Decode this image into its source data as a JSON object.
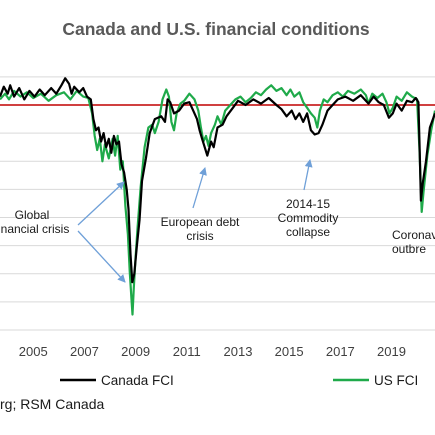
{
  "chart_data": {
    "type": "line",
    "title": "Canada and U.S. financial conditions",
    "xlabel": "",
    "ylabel": "",
    "x_tick_labels": [
      "2005",
      "2007",
      "2009",
      "2011",
      "2013",
      "2015",
      "2017",
      "2019",
      "2"
    ],
    "xlim": [
      2003.7,
      2020.7
    ],
    "ylim": [
      -8,
      1.6
    ],
    "grid": true,
    "reference_line": {
      "y": 0,
      "color": "#c00000"
    },
    "legend_position": "bottom",
    "colors": {
      "canada": "#000000",
      "us": "#1faa4a",
      "reference": "#c00000",
      "arrow": "#6fa0d8",
      "grid": "#d9d9d9"
    },
    "series": [
      {
        "name": "Canada FCI",
        "color": "#000000",
        "points": [
          [
            2003.7,
            0.3
          ],
          [
            2003.85,
            0.65
          ],
          [
            2004.0,
            0.4
          ],
          [
            2004.1,
            0.7
          ],
          [
            2004.25,
            0.3
          ],
          [
            2004.45,
            0.6
          ],
          [
            2004.65,
            0.2
          ],
          [
            2004.85,
            0.5
          ],
          [
            2005.05,
            0.3
          ],
          [
            2005.25,
            0.55
          ],
          [
            2005.45,
            0.35
          ],
          [
            2005.7,
            0.6
          ],
          [
            2005.9,
            0.4
          ],
          [
            2006.1,
            0.7
          ],
          [
            2006.25,
            0.95
          ],
          [
            2006.4,
            0.75
          ],
          [
            2006.5,
            0.4
          ],
          [
            2006.6,
            0.65
          ],
          [
            2006.8,
            0.45
          ],
          [
            2006.95,
            0.6
          ],
          [
            2007.1,
            0.3
          ],
          [
            2007.25,
            0.2
          ],
          [
            2007.35,
            -0.5
          ],
          [
            2007.45,
            -0.9
          ],
          [
            2007.55,
            -0.8
          ],
          [
            2007.65,
            -1.3
          ],
          [
            2007.75,
            -1.0
          ],
          [
            2007.85,
            -1.5
          ],
          [
            2007.95,
            -1.2
          ],
          [
            2008.05,
            -1.7
          ],
          [
            2008.15,
            -1.1
          ],
          [
            2008.25,
            -1.4
          ],
          [
            2008.35,
            -1.3
          ],
          [
            2008.45,
            -2.1
          ],
          [
            2008.55,
            -2.4
          ],
          [
            2008.65,
            -3.0
          ],
          [
            2008.72,
            -3.7
          ],
          [
            2008.8,
            -5.3
          ],
          [
            2008.87,
            -6.3
          ],
          [
            2008.95,
            -6.0
          ],
          [
            2009.05,
            -5.0
          ],
          [
            2009.15,
            -4.1
          ],
          [
            2009.25,
            -2.7
          ],
          [
            2009.4,
            -1.9
          ],
          [
            2009.55,
            -1.0
          ],
          [
            2009.75,
            -0.5
          ],
          [
            2010.0,
            -0.4
          ],
          [
            2010.15,
            -0.6
          ],
          [
            2010.25,
            0.2
          ],
          [
            2010.35,
            0.1
          ],
          [
            2010.5,
            -0.3
          ],
          [
            2010.7,
            -0.2
          ],
          [
            2010.9,
            0.05
          ],
          [
            2011.1,
            0.1
          ],
          [
            2011.25,
            -0.2
          ],
          [
            2011.4,
            -0.5
          ],
          [
            2011.5,
            -0.9
          ],
          [
            2011.6,
            -1.2
          ],
          [
            2011.7,
            -1.5
          ],
          [
            2011.8,
            -1.8
          ],
          [
            2011.95,
            -1.3
          ],
          [
            2012.05,
            -1.5
          ],
          [
            2012.2,
            -0.8
          ],
          [
            2012.4,
            -0.7
          ],
          [
            2012.55,
            -0.4
          ],
          [
            2012.8,
            -0.1
          ],
          [
            2013.0,
            0.15
          ],
          [
            2013.3,
            0.0
          ],
          [
            2013.6,
            0.2
          ],
          [
            2013.9,
            0.05
          ],
          [
            2014.2,
            0.25
          ],
          [
            2014.5,
            0.0
          ],
          [
            2014.7,
            -0.15
          ],
          [
            2014.9,
            -0.4
          ],
          [
            2015.1,
            -0.2
          ],
          [
            2015.25,
            -0.5
          ],
          [
            2015.4,
            -0.3
          ],
          [
            2015.55,
            -0.6
          ],
          [
            2015.7,
            -0.3
          ],
          [
            2015.85,
            -0.9
          ],
          [
            2016.0,
            -1.05
          ],
          [
            2016.15,
            -1.0
          ],
          [
            2016.3,
            -0.7
          ],
          [
            2016.5,
            -0.2
          ],
          [
            2016.7,
            0.0
          ],
          [
            2016.9,
            0.2
          ],
          [
            2017.2,
            0.3
          ],
          [
            2017.5,
            0.15
          ],
          [
            2017.8,
            0.35
          ],
          [
            2018.1,
            0.05
          ],
          [
            2018.3,
            0.3
          ],
          [
            2018.5,
            0.1
          ],
          [
            2018.7,
            0.0
          ],
          [
            2018.9,
            -0.45
          ],
          [
            2019.05,
            -0.3
          ],
          [
            2019.2,
            0.05
          ],
          [
            2019.4,
            -0.2
          ],
          [
            2019.6,
            0.15
          ],
          [
            2019.8,
            0.1
          ],
          [
            2019.95,
            0.25
          ],
          [
            2020.05,
            0.1
          ],
          [
            2020.1,
            -1.5
          ],
          [
            2020.15,
            -3.4
          ],
          [
            2020.22,
            -2.8
          ],
          [
            2020.35,
            -2.0
          ],
          [
            2020.5,
            -0.8
          ],
          [
            2020.7,
            -0.3
          ]
        ]
      },
      {
        "name": "US FCI",
        "color": "#1faa4a",
        "points": [
          [
            2003.7,
            0.2
          ],
          [
            2003.9,
            0.4
          ],
          [
            2004.05,
            0.2
          ],
          [
            2004.25,
            0.5
          ],
          [
            2004.5,
            0.3
          ],
          [
            2004.75,
            0.45
          ],
          [
            2005.0,
            0.25
          ],
          [
            2005.3,
            0.4
          ],
          [
            2005.6,
            0.15
          ],
          [
            2005.9,
            0.35
          ],
          [
            2006.2,
            0.45
          ],
          [
            2006.45,
            0.2
          ],
          [
            2006.7,
            0.5
          ],
          [
            2006.95,
            0.3
          ],
          [
            2007.15,
            0.25
          ],
          [
            2007.3,
            -0.3
          ],
          [
            2007.4,
            -1.1
          ],
          [
            2007.5,
            -1.6
          ],
          [
            2007.6,
            -1.2
          ],
          [
            2007.7,
            -2.0
          ],
          [
            2007.8,
            -1.4
          ],
          [
            2007.95,
            -1.9
          ],
          [
            2008.1,
            -1.2
          ],
          [
            2008.2,
            -1.8
          ],
          [
            2008.3,
            -1.1
          ],
          [
            2008.4,
            -2.3
          ],
          [
            2008.5,
            -2.0
          ],
          [
            2008.6,
            -3.6
          ],
          [
            2008.7,
            -4.6
          ],
          [
            2008.77,
            -5.9
          ],
          [
            2008.83,
            -6.8
          ],
          [
            2008.88,
            -7.45
          ],
          [
            2008.93,
            -6.5
          ],
          [
            2009.0,
            -5.4
          ],
          [
            2009.08,
            -4.3
          ],
          [
            2009.2,
            -2.9
          ],
          [
            2009.35,
            -1.5
          ],
          [
            2009.5,
            -0.8
          ],
          [
            2009.65,
            -0.7
          ],
          [
            2009.75,
            -1.0
          ],
          [
            2009.9,
            -0.6
          ],
          [
            2010.05,
            0.2
          ],
          [
            2010.2,
            0.55
          ],
          [
            2010.3,
            0.3
          ],
          [
            2010.4,
            -0.6
          ],
          [
            2010.5,
            -0.9
          ],
          [
            2010.6,
            -0.3
          ],
          [
            2010.75,
            0.05
          ],
          [
            2010.9,
            0.15
          ],
          [
            2011.1,
            0.4
          ],
          [
            2011.3,
            0.2
          ],
          [
            2011.45,
            -0.2
          ],
          [
            2011.55,
            -0.8
          ],
          [
            2011.65,
            -1.3
          ],
          [
            2011.75,
            -1.1
          ],
          [
            2011.85,
            -1.45
          ],
          [
            2011.95,
            -1.0
          ],
          [
            2012.1,
            -0.7
          ],
          [
            2012.2,
            -0.4
          ],
          [
            2012.35,
            -0.7
          ],
          [
            2012.5,
            -0.2
          ],
          [
            2012.7,
            0.0
          ],
          [
            2012.9,
            0.2
          ],
          [
            2013.1,
            0.3
          ],
          [
            2013.3,
            0.1
          ],
          [
            2013.5,
            0.25
          ],
          [
            2013.7,
            0.45
          ],
          [
            2013.9,
            0.35
          ],
          [
            2014.1,
            0.55
          ],
          [
            2014.3,
            0.7
          ],
          [
            2014.5,
            0.5
          ],
          [
            2014.7,
            0.6
          ],
          [
            2014.9,
            0.35
          ],
          [
            2015.05,
            0.55
          ],
          [
            2015.2,
            0.3
          ],
          [
            2015.4,
            0.45
          ],
          [
            2015.55,
            0.1
          ],
          [
            2015.7,
            -0.1
          ],
          [
            2015.85,
            -0.3
          ],
          [
            2016.0,
            -0.45
          ],
          [
            2016.1,
            -0.8
          ],
          [
            2016.2,
            -0.2
          ],
          [
            2016.35,
            0.2
          ],
          [
            2016.5,
            0.1
          ],
          [
            2016.7,
            0.35
          ],
          [
            2016.9,
            0.45
          ],
          [
            2017.1,
            0.3
          ],
          [
            2017.3,
            0.5
          ],
          [
            2017.55,
            0.4
          ],
          [
            2017.8,
            0.55
          ],
          [
            2018.0,
            0.35
          ],
          [
            2018.1,
            0.05
          ],
          [
            2018.25,
            0.4
          ],
          [
            2018.45,
            0.25
          ],
          [
            2018.65,
            0.4
          ],
          [
            2018.8,
            0.1
          ],
          [
            2018.92,
            -0.3
          ],
          [
            2019.05,
            -0.1
          ],
          [
            2019.2,
            0.3
          ],
          [
            2019.4,
            0.15
          ],
          [
            2019.6,
            0.45
          ],
          [
            2019.8,
            0.3
          ],
          [
            2020.0,
            0.2
          ],
          [
            2020.1,
            -1.7
          ],
          [
            2020.18,
            -3.8
          ],
          [
            2020.25,
            -3.1
          ],
          [
            2020.4,
            -1.8
          ],
          [
            2020.55,
            -0.9
          ],
          [
            2020.7,
            -0.2
          ]
        ]
      }
    ],
    "annotations": [
      {
        "lines": [
          "Global",
          "financial crisis"
        ]
      },
      {
        "lines": [
          "European debt",
          "crisis"
        ]
      },
      {
        "lines": [
          "2014-15",
          "Commodity",
          "collapse"
        ]
      },
      {
        "lines": [
          "Coronav",
          "outbre"
        ]
      }
    ]
  },
  "legend": {
    "items": [
      "Canada FCI",
      "US FCI"
    ]
  },
  "source_text": "rg; RSM Canada"
}
